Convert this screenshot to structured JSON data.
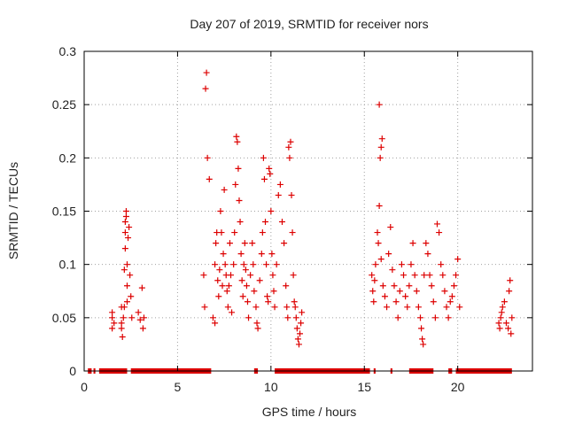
{
  "chart_data": {
    "type": "scatter",
    "title": "Day 207 of 2019, SRMTID for receiver nors",
    "xlabel": "GPS time / hours",
    "ylabel": "SRMTID / TECUs",
    "xlim": [
      0,
      24
    ],
    "ylim": [
      0,
      0.3
    ],
    "x_ticks": [
      0,
      5,
      10,
      15,
      20
    ],
    "x_tick_labels": [
      "0",
      "5",
      "10",
      "15",
      "20"
    ],
    "y_ticks": [
      0,
      0.05,
      0.1,
      0.15,
      0.2,
      0.25,
      0.3
    ],
    "y_tick_labels": [
      "0",
      "0.05",
      "0.1",
      "0.15",
      "0.2",
      "0.25",
      "0.3"
    ],
    "grid": true,
    "marker": "+",
    "color": "#dd0000",
    "series": [
      {
        "name": "SRMTID",
        "points": [
          [
            1.5,
            0.05
          ],
          [
            1.5,
            0.04
          ],
          [
            1.5,
            0.055
          ],
          [
            1.6,
            0.045
          ],
          [
            2.0,
            0.045
          ],
          [
            2.0,
            0.04
          ],
          [
            2.0,
            0.06
          ],
          [
            2.05,
            0.032
          ],
          [
            2.1,
            0.05
          ],
          [
            2.15,
            0.06
          ],
          [
            2.15,
            0.095
          ],
          [
            2.2,
            0.13
          ],
          [
            2.2,
            0.115
          ],
          [
            2.2,
            0.14
          ],
          [
            2.25,
            0.145
          ],
          [
            2.25,
            0.15
          ],
          [
            2.3,
            0.08
          ],
          [
            2.3,
            0.065
          ],
          [
            2.3,
            0.1
          ],
          [
            2.35,
            0.125
          ],
          [
            2.4,
            0.135
          ],
          [
            2.45,
            0.09
          ],
          [
            2.5,
            0.07
          ],
          [
            2.55,
            0.05
          ],
          [
            2.9,
            0.055
          ],
          [
            3.0,
            0.048
          ],
          [
            3.1,
            0.078
          ],
          [
            3.2,
            0.05
          ],
          [
            3.15,
            0.04
          ],
          [
            6.4,
            0.09
          ],
          [
            6.45,
            0.06
          ],
          [
            6.5,
            0.265
          ],
          [
            6.55,
            0.28
          ],
          [
            6.6,
            0.2
          ],
          [
            6.7,
            0.18
          ],
          [
            6.9,
            0.05
          ],
          [
            7.0,
            0.045
          ],
          [
            7.0,
            0.1
          ],
          [
            7.05,
            0.12
          ],
          [
            7.1,
            0.13
          ],
          [
            7.15,
            0.085
          ],
          [
            7.2,
            0.07
          ],
          [
            7.25,
            0.095
          ],
          [
            7.3,
            0.15
          ],
          [
            7.35,
            0.13
          ],
          [
            7.4,
            0.08
          ],
          [
            7.45,
            0.11
          ],
          [
            7.5,
            0.17
          ],
          [
            7.55,
            0.1
          ],
          [
            7.6,
            0.09
          ],
          [
            7.65,
            0.075
          ],
          [
            7.7,
            0.06
          ],
          [
            7.75,
            0.08
          ],
          [
            7.8,
            0.12
          ],
          [
            7.85,
            0.09
          ],
          [
            7.9,
            0.055
          ],
          [
            8.0,
            0.1
          ],
          [
            8.05,
            0.13
          ],
          [
            8.1,
            0.175
          ],
          [
            8.15,
            0.22
          ],
          [
            8.2,
            0.215
          ],
          [
            8.25,
            0.19
          ],
          [
            8.3,
            0.16
          ],
          [
            8.35,
            0.14
          ],
          [
            8.4,
            0.11
          ],
          [
            8.45,
            0.085
          ],
          [
            8.5,
            0.07
          ],
          [
            8.55,
            0.1
          ],
          [
            8.6,
            0.12
          ],
          [
            8.65,
            0.095
          ],
          [
            8.7,
            0.08
          ],
          [
            8.75,
            0.065
          ],
          [
            8.8,
            0.05
          ],
          [
            8.9,
            0.09
          ],
          [
            9.0,
            0.12
          ],
          [
            9.05,
            0.1
          ],
          [
            9.1,
            0.075
          ],
          [
            9.2,
            0.06
          ],
          [
            9.25,
            0.045
          ],
          [
            9.3,
            0.04
          ],
          [
            9.4,
            0.085
          ],
          [
            9.5,
            0.11
          ],
          [
            9.55,
            0.13
          ],
          [
            9.6,
            0.2
          ],
          [
            9.65,
            0.18
          ],
          [
            9.7,
            0.14
          ],
          [
            9.75,
            0.1
          ],
          [
            9.8,
            0.07
          ],
          [
            9.85,
            0.065
          ],
          [
            9.9,
            0.19
          ],
          [
            9.95,
            0.185
          ],
          [
            10.0,
            0.15
          ],
          [
            10.05,
            0.11
          ],
          [
            10.1,
            0.09
          ],
          [
            10.15,
            0.075
          ],
          [
            10.2,
            0.06
          ],
          [
            10.3,
            0.1
          ],
          [
            10.4,
            0.165
          ],
          [
            10.5,
            0.175
          ],
          [
            10.6,
            0.14
          ],
          [
            10.7,
            0.12
          ],
          [
            10.8,
            0.08
          ],
          [
            10.85,
            0.06
          ],
          [
            10.9,
            0.05
          ],
          [
            10.95,
            0.21
          ],
          [
            11.0,
            0.2
          ],
          [
            11.05,
            0.215
          ],
          [
            11.1,
            0.165
          ],
          [
            11.15,
            0.13
          ],
          [
            11.2,
            0.09
          ],
          [
            11.25,
            0.065
          ],
          [
            11.3,
            0.06
          ],
          [
            11.35,
            0.05
          ],
          [
            11.4,
            0.04
          ],
          [
            11.45,
            0.03
          ],
          [
            11.5,
            0.025
          ],
          [
            11.55,
            0.035
          ],
          [
            11.6,
            0.045
          ],
          [
            11.65,
            0.055
          ],
          [
            15.4,
            0.09
          ],
          [
            15.45,
            0.075
          ],
          [
            15.5,
            0.065
          ],
          [
            15.55,
            0.085
          ],
          [
            15.6,
            0.1
          ],
          [
            15.7,
            0.13
          ],
          [
            15.75,
            0.12
          ],
          [
            15.8,
            0.155
          ],
          [
            15.85,
            0.2
          ],
          [
            15.9,
            0.21
          ],
          [
            15.95,
            0.218
          ],
          [
            15.8,
            0.25
          ],
          [
            15.9,
            0.105
          ],
          [
            16.0,
            0.08
          ],
          [
            16.1,
            0.07
          ],
          [
            16.2,
            0.06
          ],
          [
            16.3,
            0.11
          ],
          [
            16.4,
            0.135
          ],
          [
            16.5,
            0.095
          ],
          [
            16.6,
            0.08
          ],
          [
            16.7,
            0.065
          ],
          [
            16.8,
            0.05
          ],
          [
            16.9,
            0.075
          ],
          [
            17.0,
            0.1
          ],
          [
            17.1,
            0.09
          ],
          [
            17.2,
            0.07
          ],
          [
            17.3,
            0.06
          ],
          [
            17.4,
            0.08
          ],
          [
            17.5,
            0.1
          ],
          [
            17.6,
            0.12
          ],
          [
            17.7,
            0.09
          ],
          [
            17.8,
            0.075
          ],
          [
            17.9,
            0.06
          ],
          [
            18.0,
            0.05
          ],
          [
            18.05,
            0.04
          ],
          [
            18.1,
            0.03
          ],
          [
            18.15,
            0.025
          ],
          [
            18.2,
            0.09
          ],
          [
            18.3,
            0.12
          ],
          [
            18.4,
            0.11
          ],
          [
            18.5,
            0.09
          ],
          [
            18.6,
            0.08
          ],
          [
            18.7,
            0.065
          ],
          [
            18.8,
            0.05
          ],
          [
            18.9,
            0.138
          ],
          [
            19.0,
            0.13
          ],
          [
            19.1,
            0.1
          ],
          [
            19.2,
            0.09
          ],
          [
            19.3,
            0.075
          ],
          [
            19.4,
            0.06
          ],
          [
            19.5,
            0.05
          ],
          [
            19.6,
            0.065
          ],
          [
            19.7,
            0.07
          ],
          [
            19.8,
            0.08
          ],
          [
            19.9,
            0.09
          ],
          [
            20.0,
            0.105
          ],
          [
            20.1,
            0.06
          ],
          [
            22.2,
            0.045
          ],
          [
            22.25,
            0.04
          ],
          [
            22.3,
            0.05
          ],
          [
            22.35,
            0.055
          ],
          [
            22.4,
            0.06
          ],
          [
            22.5,
            0.065
          ],
          [
            22.6,
            0.045
          ],
          [
            22.7,
            0.04
          ],
          [
            22.75,
            0.075
          ],
          [
            22.8,
            0.085
          ],
          [
            22.85,
            0.035
          ],
          [
            22.9,
            0.05
          ]
        ]
      }
    ],
    "zero_band_ranges": [
      [
        0.2,
        0.4
      ],
      [
        0.5,
        0.6
      ],
      [
        0.8,
        2.3
      ],
      [
        2.5,
        6.8
      ],
      [
        9.1,
        9.3
      ],
      [
        10.2,
        15.3
      ],
      [
        15.5,
        15.6
      ],
      [
        16.4,
        16.5
      ],
      [
        17.4,
        18.7
      ],
      [
        19.5,
        19.7
      ],
      [
        19.9,
        22.9
      ]
    ]
  }
}
